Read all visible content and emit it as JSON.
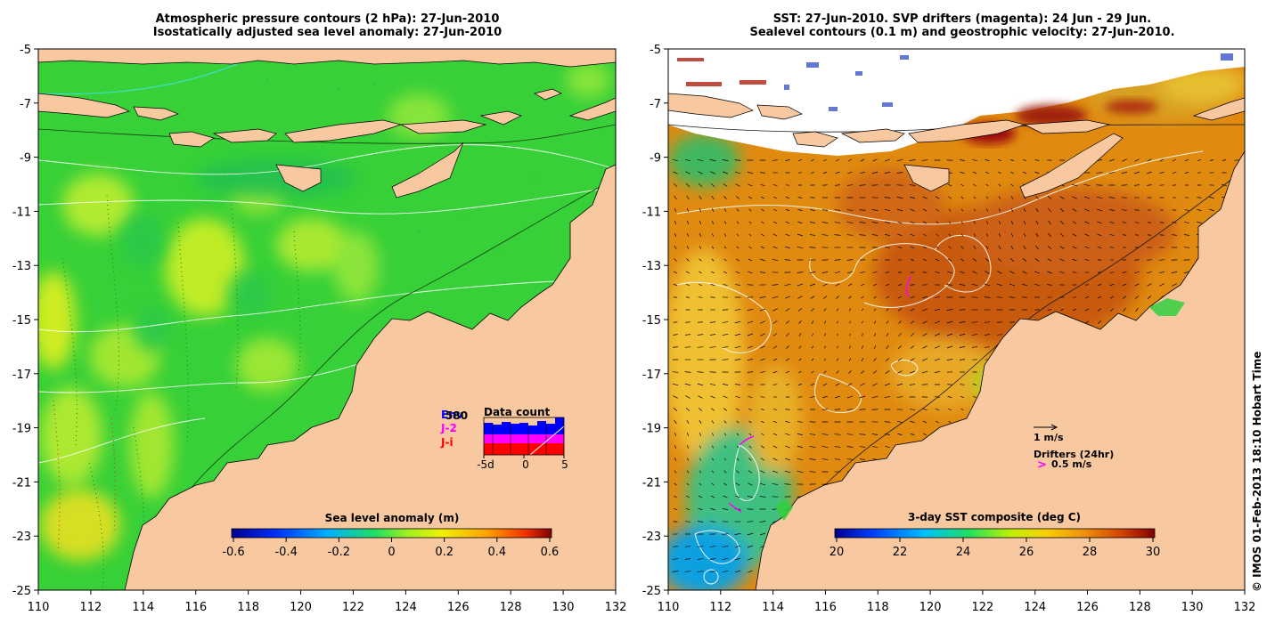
{
  "left_panel": {
    "title_line1": "Atmospheric pressure contours (2 hPa): 27-Jun-2010",
    "title_line2": "Isostatically adjusted sea level anomaly: 27-Jun-2010",
    "y_ticks": [
      "-5",
      "-7",
      "-9",
      "-11",
      "-13",
      "-15",
      "-17",
      "-19",
      "-21",
      "-23",
      "-25"
    ],
    "x_ticks": [
      "110",
      "112",
      "114",
      "116",
      "118",
      "120",
      "122",
      "124",
      "126",
      "128",
      "130",
      "132"
    ],
    "colorbar": {
      "label": "Sea level anomaly (m)",
      "ticks": [
        "-0.6",
        "-0.4",
        "-0.2",
        "0",
        "0.2",
        "0.4",
        "0.6"
      ]
    },
    "data_count": {
      "title": "Data count",
      "legend": [
        {
          "label": "Env",
          "color": "#0000ff"
        },
        {
          "label": "J-2",
          "color": "#ff00ff"
        },
        {
          "label": "J-i",
          "color": "#ff0000"
        }
      ],
      "overlap_label": "580",
      "x_ticks": [
        "-5d",
        "0",
        "5"
      ]
    }
  },
  "right_panel": {
    "title_line1": "SST: 27-Jun-2010. SVP drifters (magenta): 24 Jun - 29 Jun.",
    "title_line2": "Sealevel contours (0.1 m) and geostrophic velocity: 27-Jun-2010.",
    "y_ticks": [
      "-5",
      "-7",
      "-9",
      "-11",
      "-13",
      "-15",
      "-17",
      "-19",
      "-21",
      "-23",
      "-25"
    ],
    "x_ticks": [
      "110",
      "112",
      "114",
      "116",
      "118",
      "120",
      "122",
      "124",
      "126",
      "128",
      "130",
      "132"
    ],
    "velocity_scale": "1 m/s",
    "drifters_label": "Drifters (24hr)",
    "drifter_scale": "0.5 m/s",
    "colorbar": {
      "label": "3-day SST composite (deg C)",
      "ticks": [
        "20",
        "22",
        "24",
        "26",
        "28",
        "30"
      ]
    }
  },
  "credit": "© IMOS 01-Feb-2013 18:10 Hobart Time",
  "colors": {
    "land": "#f8c8a0",
    "ocean_left": "#40d040",
    "ocean_right": "#e08a10",
    "drifter": "#ff00ff"
  }
}
